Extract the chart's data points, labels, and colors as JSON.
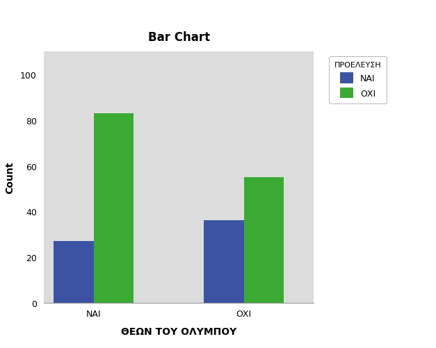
{
  "title": "Bar Chart",
  "xlabel": "ΘΕΩΝ ΤΟΥ ΟΛΥΜΠΟΥ",
  "ylabel": "Count",
  "legend_title": "ΠΡΟΕΛΕΥΣΗ",
  "legend_labels": [
    "ΝΑΙ",
    "ΟΧΙ"
  ],
  "categories": [
    "ΝΑΙ",
    "ΟΧΙ"
  ],
  "nai_values": [
    27,
    36
  ],
  "oxi_values": [
    83,
    55
  ],
  "bar_color_nai": "#3c53a4",
  "bar_color_oxi": "#3aaa35",
  "ylim": [
    0,
    110
  ],
  "yticks": [
    0,
    20,
    40,
    60,
    80,
    100
  ],
  "background_color": "#dcdcdc",
  "figure_background": "#ffffff",
  "title_fontsize": 12,
  "axis_label_fontsize": 10,
  "tick_fontsize": 9,
  "legend_title_fontsize": 8,
  "legend_fontsize": 9,
  "bar_width": 0.4,
  "x_positions": [
    0.5,
    2.0
  ]
}
